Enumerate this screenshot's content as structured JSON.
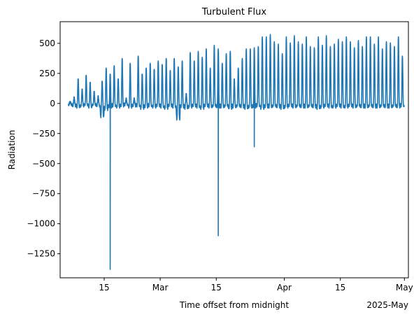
{
  "chart_data": {
    "type": "line",
    "title": "Turbulent Flux",
    "xlabel": "Time offset from midnight",
    "ylabel": "Radiation",
    "x_offset_label": "2025-May",
    "xlim": [
      "2025-02-04",
      "2025-05-02"
    ],
    "ylim": [
      -1450,
      680
    ],
    "x_ticks": [
      {
        "date": "2025-02-15",
        "label": "15"
      },
      {
        "date": "2025-03-01",
        "label": "Mar"
      },
      {
        "date": "2025-03-15",
        "label": "15"
      },
      {
        "date": "2025-04-01",
        "label": "Apr"
      },
      {
        "date": "2025-04-15",
        "label": "15"
      },
      {
        "date": "2025-05-01",
        "label": "May"
      }
    ],
    "y_ticks": [
      500,
      250,
      0,
      -250,
      -500,
      -750,
      -1000,
      -1250
    ],
    "y_tick_labels": [
      "500",
      "250",
      "0",
      "−250",
      "−500",
      "−750",
      "−1000",
      "−1250"
    ],
    "grid": false,
    "line_color": "#1f77b4",
    "series": [
      {
        "start_date": "2025-02-06",
        "end_date": "2025-05-01",
        "daily_peaks": [
          10,
          50,
          210,
          120,
          240,
          180,
          100,
          60,
          190,
          300,
          250,
          320,
          210,
          380,
          40,
          340,
          40,
          400,
          250,
          300,
          340,
          290,
          360,
          330,
          380,
          280,
          380,
          310,
          360,
          80,
          430,
          360,
          440,
          390,
          460,
          300,
          490,
          460,
          340,
          420,
          440,
          210,
          300,
          380,
          460,
          460,
          470,
          480,
          560,
          560,
          580,
          520,
          500,
          420,
          560,
          510,
          570,
          520,
          500,
          560,
          480,
          470,
          560,
          490,
          570,
          480,
          500,
          540,
          520,
          560,
          520,
          470,
          530,
          480,
          560,
          560,
          500,
          560,
          460,
          520,
          510,
          480,
          560,
          400
        ],
        "daily_troughs": [
          -20,
          -30,
          -40,
          -30,
          -20,
          -40,
          -20,
          -30,
          -120,
          -60,
          -40,
          -30,
          -40,
          -30,
          -20,
          -40,
          -30,
          -30,
          -50,
          -40,
          -30,
          -40,
          -30,
          -40,
          -50,
          -30,
          -40,
          -140,
          -40,
          -50,
          -40,
          -30,
          -40,
          -50,
          -30,
          -40,
          -30,
          -40,
          -40,
          -30,
          -50,
          -40,
          -30,
          -40,
          -50,
          -40,
          -40,
          -30,
          -50,
          -40,
          -40,
          -30,
          -40,
          -50,
          -40,
          -30,
          -40,
          -30,
          -40,
          -40,
          -30,
          -40,
          -50,
          -40,
          -30,
          -40,
          -40,
          -30,
          -40,
          -40,
          -30,
          -40,
          -30,
          -40,
          -40,
          -30,
          -40,
          -40,
          -30,
          -40,
          -40,
          -30,
          -40,
          -30
        ],
        "spikes": [
          {
            "date": "2025-02-16",
            "value": -1380
          },
          {
            "date": "2025-03-15",
            "value": -1100
          },
          {
            "date": "2025-03-24",
            "value": -360
          }
        ]
      }
    ]
  }
}
